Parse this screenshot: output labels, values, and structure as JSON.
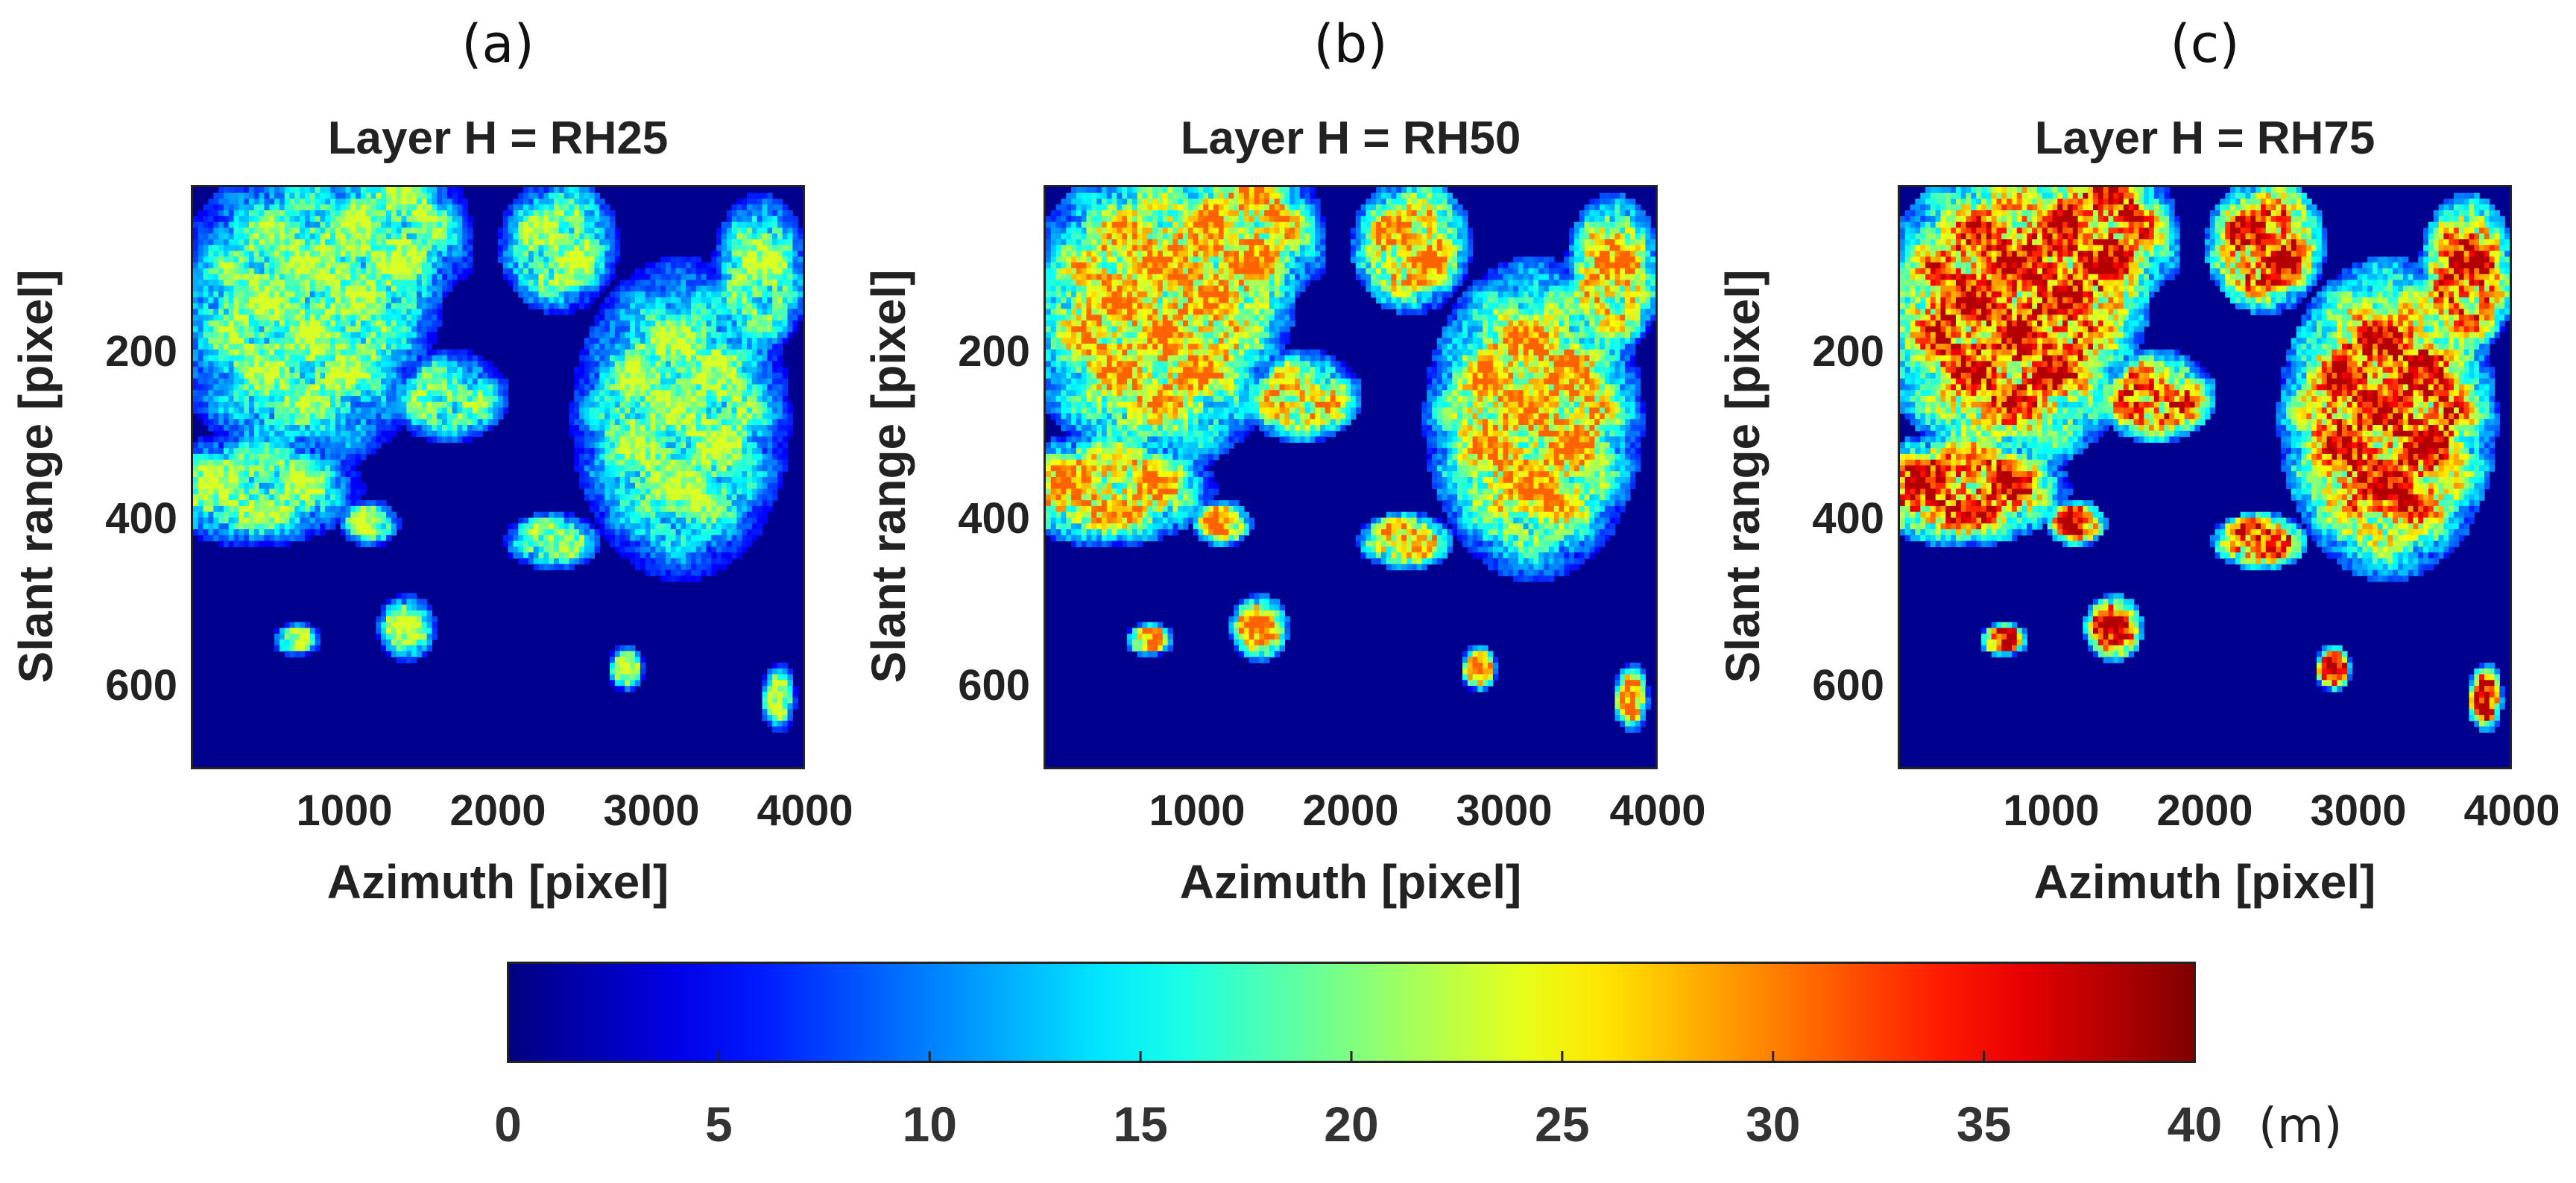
{
  "chart_data": [
    {
      "type": "heatmap",
      "panel_label": "(a)",
      "title": "Layer H = RH25",
      "xlabel": "Azimuth [pixel]",
      "ylabel": "Slant range [pixel]",
      "xlim": [
        0,
        4000
      ],
      "ylim": [
        0,
        700
      ],
      "y_reversed": true,
      "xticks": [
        1000,
        2000,
        3000,
        4000
      ],
      "yticks": [
        200,
        400,
        600
      ],
      "height_scale": 0.62
    },
    {
      "type": "heatmap",
      "panel_label": "(b)",
      "title": "Layer H = RH50",
      "xlabel": "Azimuth [pixel]",
      "ylabel": "Slant range [pixel]",
      "xlim": [
        0,
        4000
      ],
      "ylim": [
        0,
        700
      ],
      "y_reversed": true,
      "xticks": [
        1000,
        2000,
        3000,
        4000
      ],
      "yticks": [
        200,
        400,
        600
      ],
      "height_scale": 0.82
    },
    {
      "type": "heatmap",
      "panel_label": "(c)",
      "title": "Layer H = RH75",
      "xlabel": "Azimuth [pixel]",
      "ylabel": "Slant range [pixel]",
      "xlim": [
        0,
        4000
      ],
      "ylim": [
        0,
        700
      ],
      "y_reversed": true,
      "xticks": [
        1000,
        2000,
        3000,
        4000
      ],
      "yticks": [
        200,
        400,
        600
      ],
      "height_scale": 1.0
    }
  ],
  "colorbar": {
    "colormap": "jet",
    "min": 0,
    "max": 40,
    "ticks": [
      "0",
      "5",
      "10",
      "15",
      "20",
      "25",
      "30",
      "35",
      "40"
    ],
    "unit": "(m)",
    "colors": [
      "#00008f",
      "#0000ff",
      "#00ffff",
      "#ffff00",
      "#ff0000",
      "#800000"
    ]
  }
}
